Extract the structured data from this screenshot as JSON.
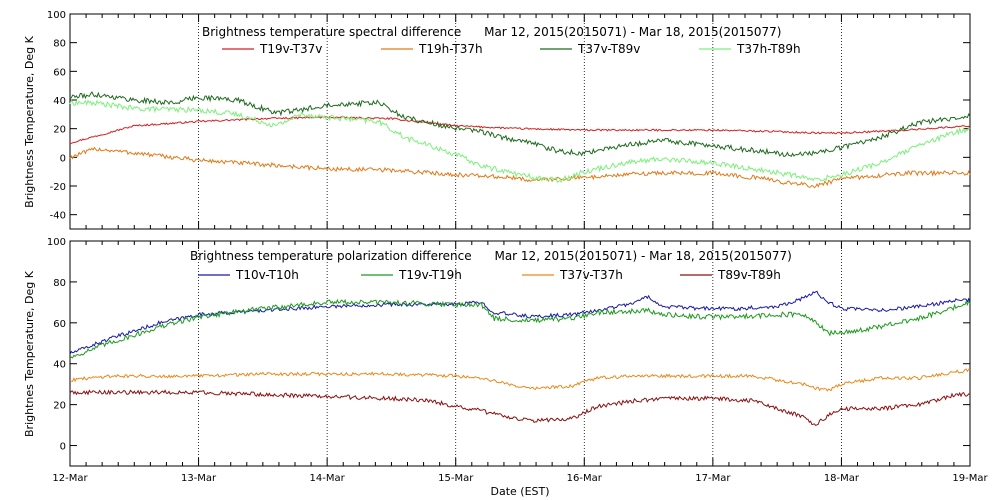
{
  "chart_data": {
    "xlabel": "Date (EST)",
    "x_tick_labels": [
      "12-Mar",
      "13-Mar",
      "14-Mar",
      "15-Mar",
      "16-Mar",
      "17-Mar",
      "18-Mar",
      "19-Mar"
    ],
    "x_range_days": [
      0,
      7
    ],
    "panels": [
      {
        "type": "line",
        "title": "Brightness temperature spectral difference      Mar 12, 2015(2015071) - Mar 18, 2015(2015077)",
        "ylabel": "Brightness Temperature, Deg K",
        "ylim": [
          -50,
          100
        ],
        "y_ticks": [
          -40,
          -20,
          0,
          20,
          40,
          60,
          80,
          100
        ],
        "grid": "vertical dotted at each day",
        "legend_position": "top",
        "series": [
          {
            "name": "T19v-T37v",
            "color": "#d42020",
            "x": [
              0,
              0.5,
              1,
              1.5,
              2,
              2.5,
              3,
              3.5,
              4,
              4.5,
              5,
              5.5,
              5.8,
              6,
              6.5,
              7
            ],
            "y": [
              10,
              22,
              25,
              27,
              28,
              27,
              22,
              20,
              19,
              19,
              19,
              18,
              17,
              17,
              19,
              22
            ],
            "noise": 0.6
          },
          {
            "name": "T19h-T37h",
            "color": "#e07b1a",
            "x": [
              0,
              0.2,
              0.5,
              1,
              1.5,
              2,
              2.5,
              3,
              3.4,
              3.6,
              4,
              4.5,
              5,
              5.4,
              5.6,
              5.8,
              6,
              6.5,
              7
            ],
            "y": [
              0,
              6,
              3,
              -2,
              -5,
              -8,
              -9,
              -12,
              -14,
              -16,
              -14,
              -11,
              -11,
              -15,
              -18,
              -20,
              -15,
              -11,
              -11
            ],
            "noise": 1.5
          },
          {
            "name": "T37v-T89v",
            "color": "#1f6b1f",
            "x": [
              0,
              0.2,
              0.5,
              0.8,
              1,
              1.3,
              1.6,
              1.8,
              2,
              2.4,
              2.6,
              3,
              3.2,
              3.4,
              3.6,
              3.8,
              4,
              4.3,
              4.6,
              5,
              5.3,
              5.6,
              5.8,
              6,
              6.3,
              6.6,
              6.9,
              7
            ],
            "y": [
              42,
              44,
              40,
              38,
              42,
              40,
              31,
              33,
              37,
              38,
              28,
              20,
              18,
              13,
              10,
              4,
              3,
              8,
              12,
              8,
              5,
              2,
              3,
              7,
              14,
              24,
              28,
              29
            ],
            "noise": 1.8
          },
          {
            "name": "T37h-T89h",
            "color": "#7cf07c",
            "x": [
              0,
              0.2,
              0.5,
              1,
              1.3,
              1.6,
              1.8,
              2,
              2.4,
              2.6,
              3,
              3.2,
              3.4,
              3.6,
              3.8,
              4,
              4.3,
              4.6,
              5,
              5.3,
              5.6,
              5.8,
              6,
              6.3,
              6.6,
              6.9,
              7
            ],
            "y": [
              38,
              38,
              34,
              33,
              30,
              22,
              30,
              28,
              25,
              14,
              2,
              -6,
              -10,
              -14,
              -16,
              -10,
              -4,
              -1,
              -4,
              -8,
              -12,
              -16,
              -12,
              -4,
              8,
              18,
              20
            ],
            "noise": 1.8
          }
        ]
      },
      {
        "type": "line",
        "title": "Brightness temperature polarization difference      Mar 12, 2015(2015071) - Mar 18, 2015(2015077)",
        "ylabel": "Brightnes Temperature, Deg K",
        "ylim": [
          -10,
          100
        ],
        "y_ticks": [
          0,
          20,
          40,
          60,
          80,
          100
        ],
        "grid": "vertical dotted at each day",
        "legend_position": "top",
        "series": [
          {
            "name": "T10v-T10h",
            "color": "#1a1aa8",
            "x": [
              0,
              0.3,
              0.7,
              1,
              1.5,
              2,
              2.5,
              3,
              3.2,
              3.3,
              3.6,
              3.9,
              4.1,
              4.4,
              4.5,
              4.6,
              4.9,
              5.2,
              5.5,
              5.7,
              5.8,
              5.9,
              6,
              6.3,
              6.6,
              6.9,
              7
            ],
            "y": [
              45,
              52,
              60,
              64,
              66,
              68,
              69,
              69,
              70,
              65,
              63,
              64,
              66,
              70,
              73,
              68,
              67,
              67,
              68,
              72,
              75,
              70,
              67,
              66,
              68,
              71,
              71
            ],
            "noise": 0.9
          },
          {
            "name": "T19v-T19h",
            "color": "#1f9a1f",
            "x": [
              0,
              0.3,
              0.7,
              1,
              1.5,
              2,
              2.5,
              3,
              3.2,
              3.3,
              3.6,
              3.9,
              4.1,
              4.4,
              4.5,
              4.6,
              4.9,
              5.2,
              5.5,
              5.7,
              5.8,
              5.9,
              6,
              6.3,
              6.6,
              6.9,
              7
            ],
            "y": [
              43,
              50,
              58,
              63,
              67,
              70,
              70,
              69,
              69,
              62,
              61,
              62,
              65,
              66,
              66,
              64,
              63,
              63,
              64,
              64,
              60,
              55,
              55,
              58,
              62,
              68,
              70
            ],
            "noise": 1.2
          },
          {
            "name": "T37v-T37h",
            "color": "#e88a1c",
            "x": [
              0,
              0.3,
              0.7,
              1,
              1.5,
              2,
              2.5,
              3,
              3.2,
              3.4,
              3.6,
              3.9,
              4.1,
              4.4,
              4.7,
              5,
              5.3,
              5.5,
              5.7,
              5.8,
              5.9,
              6,
              6.3,
              6.6,
              6.9,
              7
            ],
            "y": [
              32,
              34,
              34,
              34,
              35,
              35,
              35,
              34,
              33,
              30,
              28,
              29,
              33,
              34,
              34,
              34,
              34,
              32,
              30,
              28,
              27,
              30,
              33,
              33,
              36,
              37
            ],
            "noise": 0.8
          },
          {
            "name": "T89v-T89h",
            "color": "#8a1010",
            "x": [
              0,
              0.3,
              0.7,
              1,
              1.5,
              2,
              2.5,
              2.8,
              3,
              3.2,
              3.4,
              3.6,
              3.9,
              4.1,
              4.4,
              4.7,
              5,
              5.3,
              5.5,
              5.7,
              5.8,
              5.9,
              6,
              6.3,
              6.6,
              6.9,
              7
            ],
            "y": [
              26,
              26,
              26,
              26,
              25,
              24,
              23,
              22,
              19,
              17,
              14,
              12,
              13,
              19,
              22,
              23,
              23,
              22,
              18,
              14,
              10,
              15,
              18,
              18,
              20,
              25,
              25
            ],
            "noise": 1.0
          }
        ]
      }
    ]
  }
}
